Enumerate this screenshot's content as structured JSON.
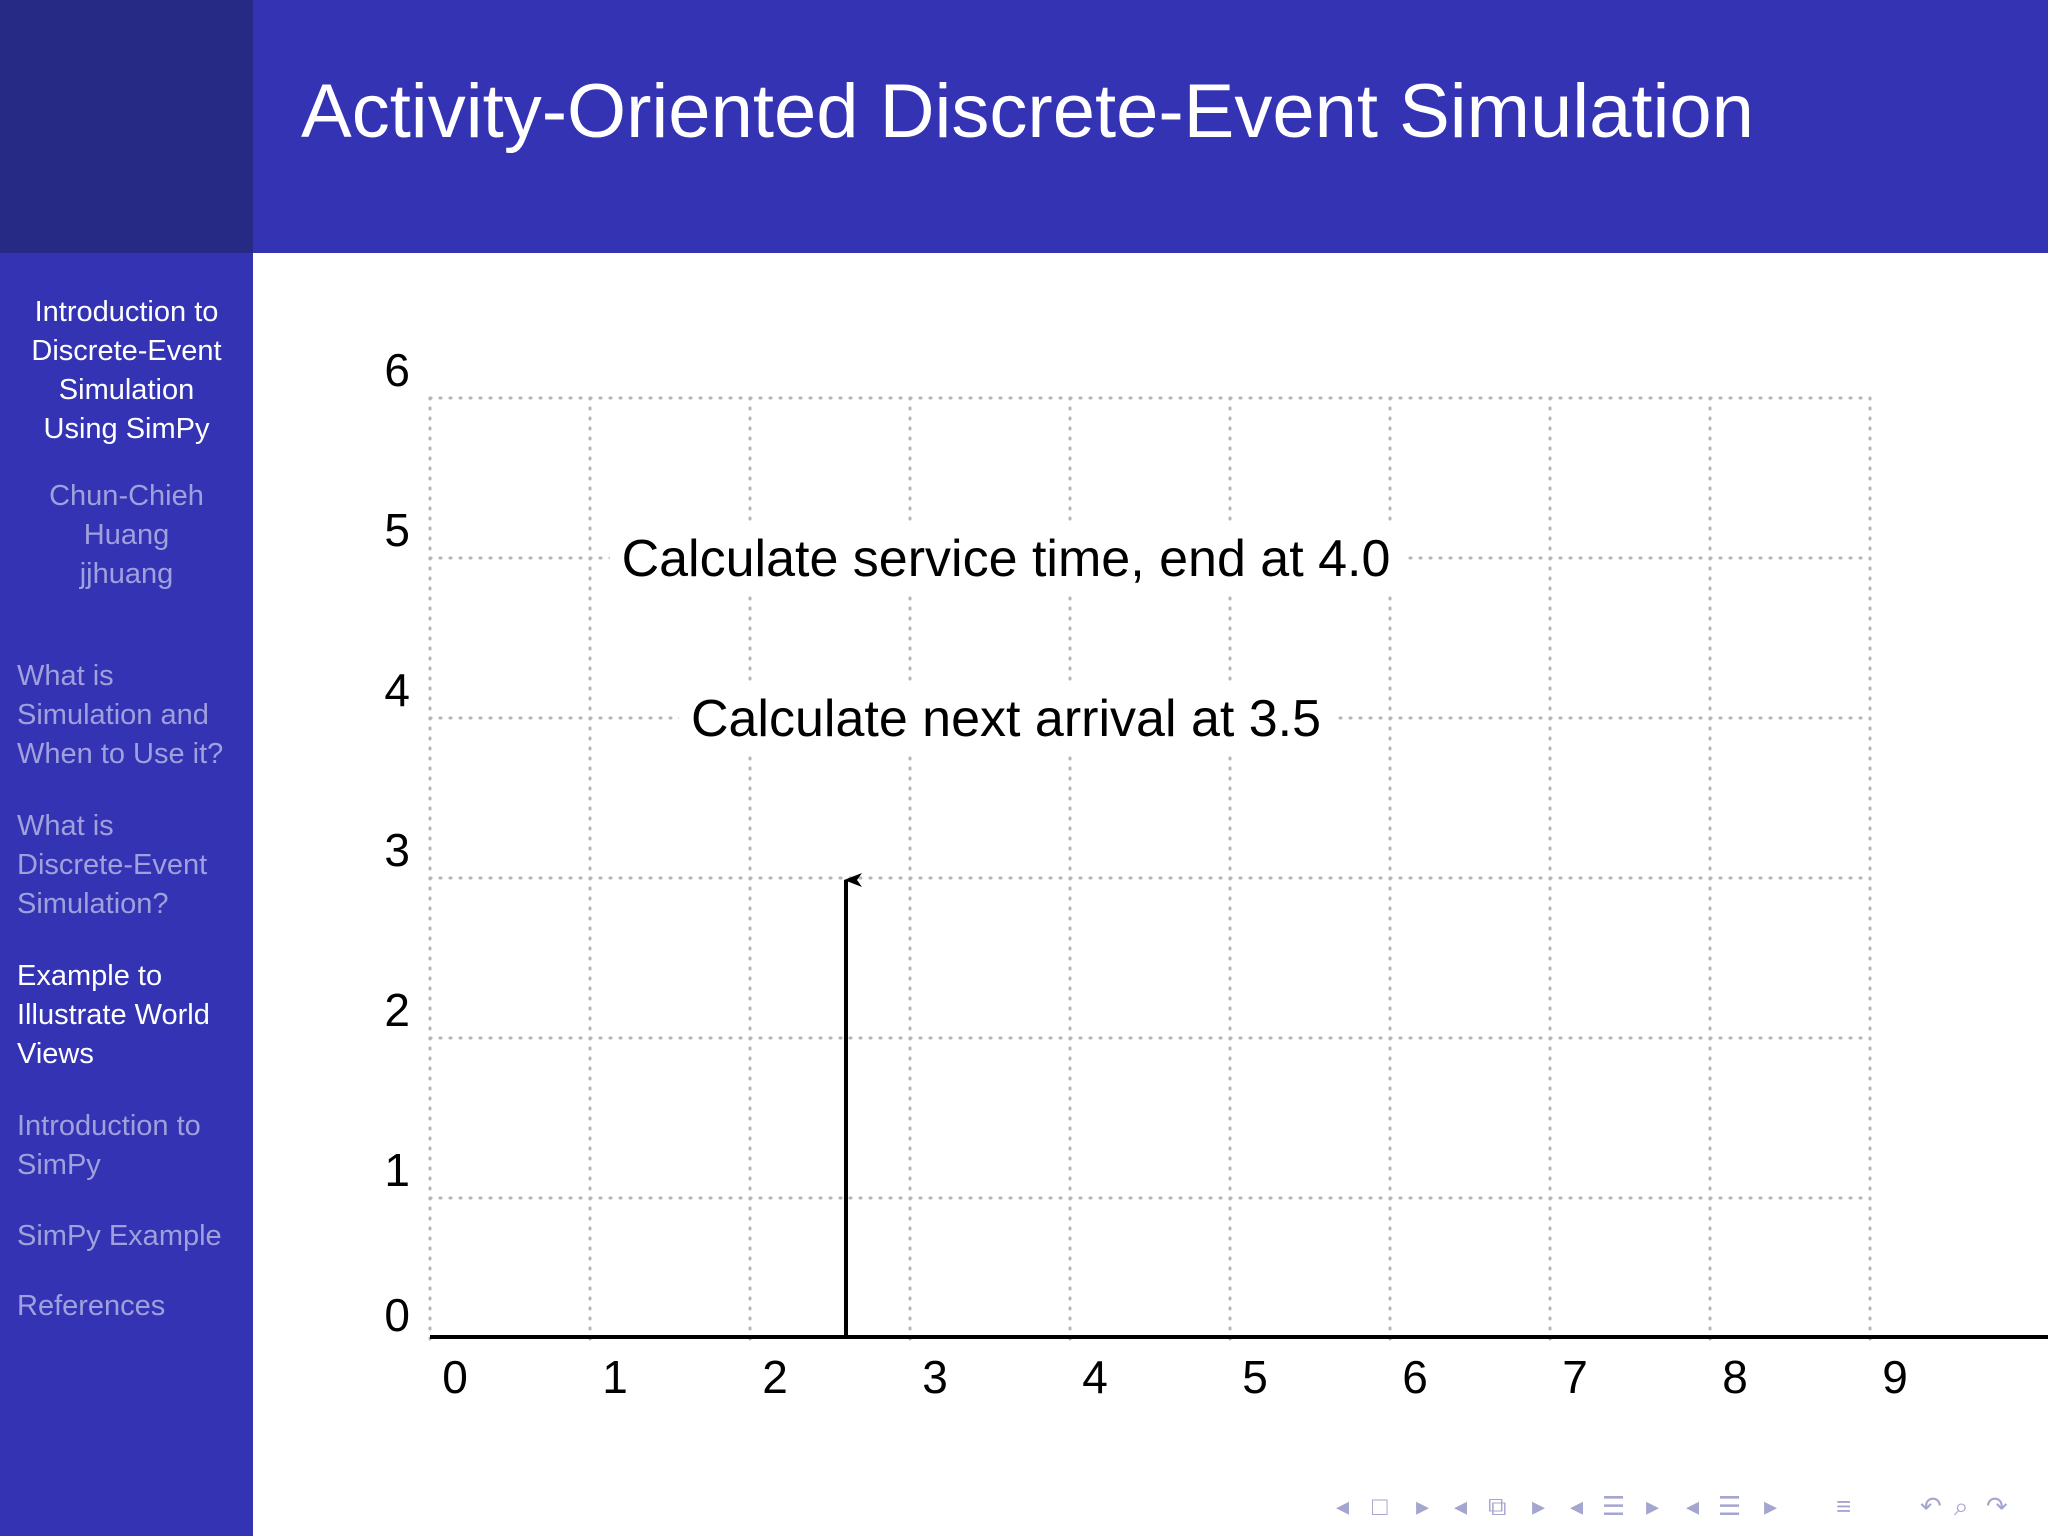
{
  "header": {
    "title": "Activity-Oriented Discrete-Event Simulation"
  },
  "sidebar": {
    "title_lines": [
      "Introduction to",
      "Discrete-Event",
      "Simulation",
      "Using SimPy"
    ],
    "author_lines": [
      "Chun-Chieh",
      "Huang",
      "jjhuang"
    ],
    "sections": [
      {
        "lines": [
          "What is",
          "Simulation and",
          "When to Use it?"
        ],
        "active": false
      },
      {
        "lines": [
          "What is",
          "Discrete-Event",
          "Simulation?"
        ],
        "active": false
      },
      {
        "lines": [
          "Example to",
          "Illustrate World",
          "Views"
        ],
        "active": true
      },
      {
        "lines": [
          "Introduction to",
          "SimPy"
        ],
        "active": false
      },
      {
        "lines": [
          "SimPy Example"
        ],
        "active": false
      },
      {
        "lines": [
          "References"
        ],
        "active": false
      }
    ]
  },
  "colors": {
    "header_bg": "#3333b3",
    "corner_bg": "#272a85",
    "sidebar_active": "#ffffff",
    "sidebar_inactive": "#9fa0dc",
    "nav_controls": "#a5a6cf"
  },
  "chart_data": {
    "type": "other",
    "title": "",
    "xlabel": "",
    "ylabel": "",
    "xlim": [
      0,
      9
    ],
    "ylim": [
      0,
      6
    ],
    "x_ticks": [
      0,
      1,
      2,
      3,
      4,
      5,
      6,
      7,
      8,
      9
    ],
    "y_ticks": [
      0,
      1,
      2,
      3,
      4,
      5,
      6
    ],
    "grid": true,
    "arrows": [
      {
        "x": 2.6,
        "y_start": 0,
        "y_end": 3
      }
    ],
    "annotations": [
      {
        "text": "Calculate service time, end at 4.0",
        "x": 3.6,
        "y": 5
      },
      {
        "text": "Calculate next arrival at 3.5",
        "x": 3.6,
        "y": 4
      }
    ]
  },
  "nav_icons": [
    "arrow-left-icon",
    "frame-icon",
    "arrow-right-icon",
    "arrow-left-icon",
    "subsection-icon",
    "arrow-right-icon",
    "arrow-left-icon",
    "section-icon",
    "arrow-right-icon",
    "arrow-left-icon",
    "document-icon",
    "arrow-right-icon",
    "toc-icon",
    "undo-icon",
    "search-icon",
    "redo-icon"
  ]
}
